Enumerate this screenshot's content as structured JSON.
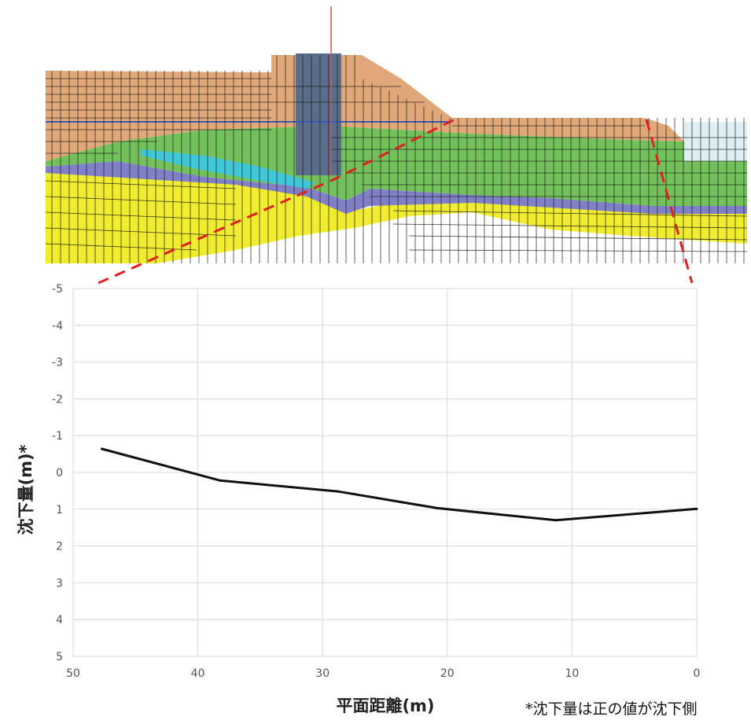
{
  "chart_data": {
    "type": "line",
    "xlabel": "平面距離(m)",
    "ylabel": "沈下量(m)*",
    "note": "*沈下量は正の値が沈下側",
    "xlim": [
      50,
      0
    ],
    "ylim": [
      -5,
      5
    ],
    "x_ticks": [
      "50",
      "40",
      "30",
      "20",
      "10",
      "0"
    ],
    "y_ticks": [
      "-5",
      "-4",
      "-3",
      "-2",
      "-1",
      "0",
      "1",
      "2",
      "3",
      "4",
      "5"
    ],
    "x_reversed": true,
    "y_reversed": true,
    "grid": true,
    "line_color": "#111111",
    "series": [
      {
        "x": [
          47.7,
          38.2,
          28.7,
          20.8,
          11.3,
          0.0
        ],
        "y": [
          -0.64,
          0.22,
          0.52,
          0.97,
          1.3,
          0.99
        ]
      }
    ]
  },
  "figure": {
    "colors": {
      "embankment": "#e0a878",
      "green_layer": "#72c15a",
      "purple_layer": "#8080c8",
      "cyan_layer": "#40c8d8",
      "yellow_layer": "#f0ec30",
      "structure": "#5a6e8a",
      "mesh": "#1a1a1a",
      "callout": "#e02020"
    }
  }
}
